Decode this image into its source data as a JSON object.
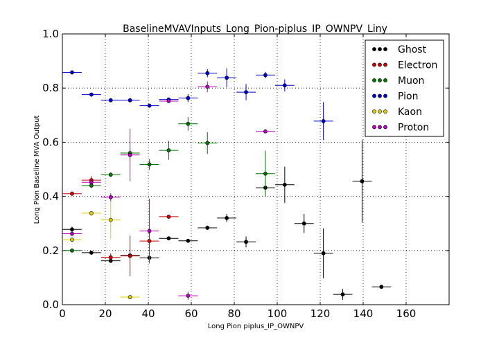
{
  "chart_data": {
    "type": "scatter",
    "title": "BaselineMVAVInputs_Long_Pion-piplus_IP_OWNPV_Liny",
    "xlabel": "Long Pion piplus_IP_OWNPV",
    "ylabel": "Long Pion Baseline MVA Output",
    "xlim": [
      0,
      180
    ],
    "ylim": [
      0,
      1.0
    ],
    "xticks": [
      "0",
      "20",
      "40",
      "60",
      "80",
      "100",
      "120",
      "140",
      "160"
    ],
    "yticks": [
      "0.0",
      "0.2",
      "0.4",
      "0.6",
      "0.8",
      "1.0"
    ],
    "grid": true,
    "legend_position": "top-right",
    "series": [
      {
        "name": "Ghost",
        "color": "#000000",
        "points": [
          {
            "x": 4.5,
            "y": 0.278,
            "xerr": 4.5,
            "yerr": 0.01
          },
          {
            "x": 13.5,
            "y": 0.192,
            "xerr": 4.5,
            "yerr": 0.006
          },
          {
            "x": 22.5,
            "y": 0.162,
            "xerr": 4.5,
            "yerr": 0.007
          },
          {
            "x": 31.5,
            "y": 0.182,
            "xerr": 4.5,
            "yerr": 0.005
          },
          {
            "x": 40.5,
            "y": 0.173,
            "xerr": 4.5,
            "yerr": 0.005
          },
          {
            "x": 49.5,
            "y": 0.245,
            "xerr": 4.5,
            "yerr": 0.006
          },
          {
            "x": 58.5,
            "y": 0.236,
            "xerr": 4.5,
            "yerr": 0.006
          },
          {
            "x": 67.5,
            "y": 0.284,
            "xerr": 4.5,
            "yerr": 0.008
          },
          {
            "x": 76.5,
            "y": 0.32,
            "xerr": 4.5,
            "yerr": 0.015
          },
          {
            "x": 85.5,
            "y": 0.232,
            "xerr": 4.5,
            "yerr": 0.02
          },
          {
            "x": 94.5,
            "y": 0.432,
            "xerr": 4.5,
            "yerr": 0.025
          },
          {
            "x": 103.5,
            "y": 0.443,
            "xerr": 4.5,
            "yerr": 0.067
          },
          {
            "x": 112.5,
            "y": 0.3,
            "xerr": 4.5,
            "yerr": 0.035
          },
          {
            "x": 121.5,
            "y": 0.19,
            "xerr": 4.5,
            "yerr": 0.092
          },
          {
            "x": 130.5,
            "y": 0.038,
            "xerr": 4.5,
            "yerr": 0.02
          },
          {
            "x": 139.5,
            "y": 0.456,
            "xerr": 4.5,
            "yerr": 0.152
          },
          {
            "x": 148.5,
            "y": 0.066,
            "xerr": 4.5,
            "yerr": 0.003
          }
        ]
      },
      {
        "name": "Electron",
        "color": "#cc0000",
        "points": [
          {
            "x": 4.5,
            "y": 0.41,
            "xerr": 4.5,
            "yerr": 0.004
          },
          {
            "x": 13.5,
            "y": 0.46,
            "xerr": 4.5,
            "yerr": 0.015
          },
          {
            "x": 22.5,
            "y": 0.175,
            "xerr": 4.5,
            "yerr": 0.015
          },
          {
            "x": 31.5,
            "y": 0.18,
            "xerr": 4.5,
            "yerr": 0.075
          },
          {
            "x": 40.5,
            "y": 0.235,
            "xerr": 4.5,
            "yerr": 0.035
          },
          {
            "x": 49.5,
            "y": 0.325,
            "xerr": 4.5,
            "yerr": 0.004
          }
        ]
      },
      {
        "name": "Muon",
        "color": "#007700",
        "points": [
          {
            "x": 4.5,
            "y": 0.2,
            "xerr": 4.5,
            "yerr": 0.003
          },
          {
            "x": 13.5,
            "y": 0.44,
            "xerr": 4.5,
            "yerr": 0.01
          },
          {
            "x": 22.5,
            "y": 0.48,
            "xerr": 4.5,
            "yerr": 0.008
          },
          {
            "x": 31.5,
            "y": 0.56,
            "xerr": 4.5,
            "yerr": 0.015
          },
          {
            "x": 40.5,
            "y": 0.518,
            "xerr": 4.5,
            "yerr": 0.02
          },
          {
            "x": 49.5,
            "y": 0.57,
            "xerr": 4.5,
            "yerr": 0.035
          },
          {
            "x": 58.5,
            "y": 0.668,
            "xerr": 4.5,
            "yerr": 0.025
          },
          {
            "x": 67.5,
            "y": 0.597,
            "xerr": 4.5,
            "yerr": 0.04
          },
          {
            "x": 94.5,
            "y": 0.484,
            "xerr": 4.5,
            "yerr": 0.085
          }
        ]
      },
      {
        "name": "Pion",
        "color": "#0000cc",
        "points": [
          {
            "x": 4.5,
            "y": 0.858,
            "xerr": 4.5,
            "yerr": 0.003
          },
          {
            "x": 13.5,
            "y": 0.776,
            "xerr": 4.5,
            "yerr": 0.003
          },
          {
            "x": 22.5,
            "y": 0.755,
            "xerr": 4.5,
            "yerr": 0.003
          },
          {
            "x": 31.5,
            "y": 0.755,
            "xerr": 4.5,
            "yerr": 0.003
          },
          {
            "x": 40.5,
            "y": 0.735,
            "xerr": 4.5,
            "yerr": 0.003
          },
          {
            "x": 49.5,
            "y": 0.758,
            "xerr": 4.5,
            "yerr": 0.005
          },
          {
            "x": 58.5,
            "y": 0.763,
            "xerr": 4.5,
            "yerr": 0.015
          },
          {
            "x": 67.5,
            "y": 0.855,
            "xerr": 4.5,
            "yerr": 0.015
          },
          {
            "x": 76.5,
            "y": 0.838,
            "xerr": 4.5,
            "yerr": 0.035
          },
          {
            "x": 85.5,
            "y": 0.785,
            "xerr": 4.5,
            "yerr": 0.03
          },
          {
            "x": 94.5,
            "y": 0.848,
            "xerr": 4.5,
            "yerr": 0.012
          },
          {
            "x": 103.5,
            "y": 0.81,
            "xerr": 4.5,
            "yerr": 0.022
          },
          {
            "x": 121.5,
            "y": 0.678,
            "xerr": 4.5,
            "yerr": 0.07
          }
        ]
      },
      {
        "name": "Kaon",
        "color": "#ddcc00",
        "points": [
          {
            "x": 4.5,
            "y": 0.24,
            "xerr": 4.5,
            "yerr": 0.005
          },
          {
            "x": 13.5,
            "y": 0.338,
            "xerr": 4.5,
            "yerr": 0.01
          },
          {
            "x": 22.5,
            "y": 0.313,
            "xerr": 4.5,
            "yerr": 0.07
          },
          {
            "x": 31.5,
            "y": 0.028,
            "xerr": 4.5,
            "yerr": 0.003
          }
        ]
      },
      {
        "name": "Proton",
        "color": "#bb00bb",
        "points": [
          {
            "x": 4.5,
            "y": 0.262,
            "xerr": 4.5,
            "yerr": 0.005
          },
          {
            "x": 13.5,
            "y": 0.452,
            "xerr": 4.5,
            "yerr": 0.012
          },
          {
            "x": 22.5,
            "y": 0.397,
            "xerr": 4.5,
            "yerr": 0.015
          },
          {
            "x": 31.5,
            "y": 0.553,
            "xerr": 4.5,
            "yerr": 0.097
          },
          {
            "x": 40.5,
            "y": 0.272,
            "xerr": 4.5,
            "yerr": 0.12
          },
          {
            "x": 49.5,
            "y": 0.752,
            "xerr": 4.5,
            "yerr": 0.004
          },
          {
            "x": 58.5,
            "y": 0.033,
            "xerr": 4.5,
            "yerr": 0.015
          },
          {
            "x": 67.5,
            "y": 0.805,
            "xerr": 4.5,
            "yerr": 0.02
          },
          {
            "x": 94.5,
            "y": 0.64,
            "xerr": 4.5,
            "yerr": 0.003
          }
        ]
      }
    ]
  }
}
